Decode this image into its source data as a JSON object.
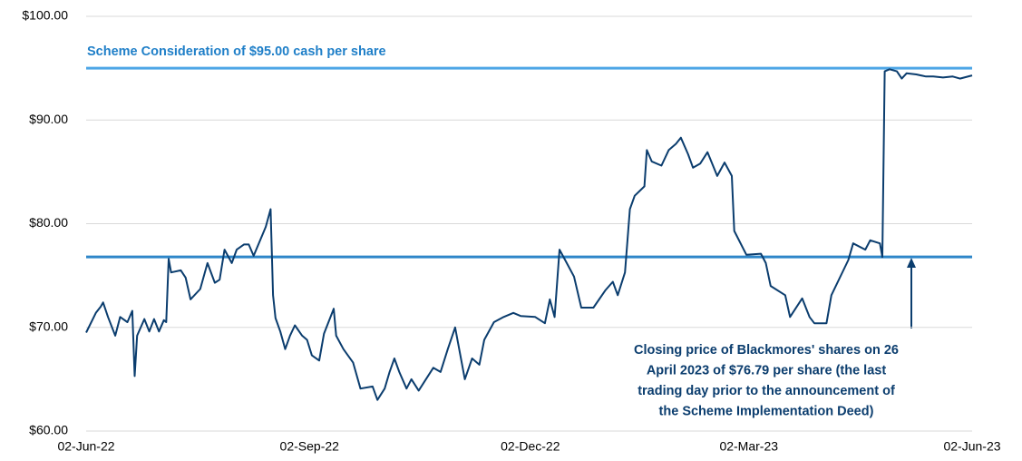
{
  "chart_data": {
    "type": "line",
    "x": [
      "2022-06-02",
      "2022-06-06",
      "2022-06-08",
      "2022-06-09",
      "2022-06-11",
      "2022-06-14",
      "2022-06-16",
      "2022-06-19",
      "2022-06-21",
      "2022-06-22",
      "2022-06-23",
      "2022-06-26",
      "2022-06-28",
      "2022-06-30",
      "2022-07-02",
      "2022-07-04",
      "2022-07-05",
      "2022-07-06",
      "2022-07-07",
      "2022-07-11",
      "2022-07-13",
      "2022-07-15",
      "2022-07-19",
      "2022-07-22",
      "2022-07-25",
      "2022-07-27",
      "2022-07-29",
      "2022-08-01",
      "2022-08-03",
      "2022-08-06",
      "2022-08-08",
      "2022-08-10",
      "2022-08-15",
      "2022-08-17",
      "2022-08-18",
      "2022-08-19",
      "2022-08-21",
      "2022-08-23",
      "2022-08-25",
      "2022-08-27",
      "2022-08-30",
      "2022-09-01",
      "2022-09-03",
      "2022-09-06",
      "2022-09-08",
      "2022-09-12",
      "2022-09-13",
      "2022-09-16",
      "2022-09-20",
      "2022-09-23",
      "2022-09-28",
      "2022-09-30",
      "2022-10-03",
      "2022-10-05",
      "2022-10-07",
      "2022-10-09",
      "2022-10-12",
      "2022-10-14",
      "2022-10-17",
      "2022-10-20",
      "2022-10-23",
      "2022-10-26",
      "2022-10-29",
      "2022-11-01",
      "2022-11-05",
      "2022-11-08",
      "2022-11-11",
      "2022-11-13",
      "2022-11-17",
      "2022-11-21",
      "2022-11-25",
      "2022-11-28",
      "2022-12-04",
      "2022-12-08",
      "2022-12-10",
      "2022-12-12",
      "2022-12-14",
      "2022-12-17",
      "2022-12-20",
      "2022-12-23",
      "2022-12-28",
      "2023-01-02",
      "2023-01-05",
      "2023-01-07",
      "2023-01-10",
      "2023-01-12",
      "2023-01-14",
      "2023-01-18",
      "2023-01-19",
      "2023-01-21",
      "2023-01-25",
      "2023-01-28",
      "2023-01-31",
      "2023-02-02",
      "2023-02-05",
      "2023-02-07",
      "2023-02-10",
      "2023-02-13",
      "2023-02-17",
      "2023-02-20",
      "2023-02-23",
      "2023-02-24",
      "2023-03-01",
      "2023-03-07",
      "2023-03-09",
      "2023-03-11",
      "2023-03-17",
      "2023-03-19",
      "2023-03-24",
      "2023-03-27",
      "2023-03-29",
      "2023-04-03",
      "2023-04-05",
      "2023-04-12",
      "2023-04-14",
      "2023-04-19",
      "2023-04-21",
      "2023-04-25",
      "2023-04-26",
      "2023-04-27",
      "2023-04-29",
      "2023-05-02",
      "2023-05-04",
      "2023-05-06",
      "2023-05-10",
      "2023-05-14",
      "2023-05-17",
      "2023-05-21",
      "2023-05-25",
      "2023-05-28",
      "2023-06-02"
    ],
    "series": [
      {
        "color": "#0b3d6e",
        "values": [
          69.5,
          71.4,
          72.0,
          72.4,
          71.0,
          69.2,
          71.0,
          70.5,
          71.6,
          65.3,
          69.2,
          70.8,
          69.6,
          70.8,
          69.6,
          70.7,
          70.5,
          76.6,
          75.3,
          75.5,
          74.8,
          72.7,
          73.7,
          76.2,
          74.3,
          74.6,
          77.5,
          76.2,
          77.5,
          78.0,
          78.0,
          76.9,
          79.7,
          81.4,
          73.1,
          70.9,
          69.6,
          67.9,
          69.2,
          70.2,
          69.2,
          68.8,
          67.3,
          66.8,
          69.4,
          71.8,
          69.2,
          67.9,
          66.6,
          64.1,
          64.3,
          63.0,
          64.1,
          65.7,
          67.0,
          65.7,
          64.1,
          65.0,
          63.9,
          65.0,
          66.1,
          65.7,
          67.9,
          70.0,
          65.0,
          67.0,
          66.4,
          68.8,
          70.5,
          71.0,
          71.4,
          71.1,
          71.0,
          70.4,
          72.7,
          71.0,
          77.5,
          76.2,
          74.9,
          71.9,
          71.9,
          73.6,
          74.4,
          73.1,
          75.3,
          81.4,
          82.7,
          83.6,
          87.1,
          86.0,
          85.6,
          87.1,
          87.7,
          88.3,
          86.7,
          85.4,
          85.8,
          86.9,
          84.6,
          85.9,
          84.6,
          79.3,
          77.0,
          77.1,
          76.2,
          74.0,
          73.1,
          71.0,
          72.8,
          71.0,
          70.4,
          70.4,
          73.1,
          76.5,
          78.1,
          77.5,
          78.4,
          78.1,
          76.79,
          94.7,
          94.9,
          94.7,
          94.0,
          94.5,
          94.4,
          94.2,
          94.2,
          94.1,
          94.2,
          94.0,
          94.3
        ]
      }
    ],
    "xlim": [
      "2022-06-02",
      "2023-06-02"
    ],
    "xticks": [
      {
        "value": "2022-06-02",
        "label": "02-Jun-22"
      },
      {
        "value": "2022-09-02",
        "label": "02-Sep-22"
      },
      {
        "value": "2022-12-02",
        "label": "02-Dec-22"
      },
      {
        "value": "2023-03-02",
        "label": "02-Mar-23"
      },
      {
        "value": "2023-06-02",
        "label": "02-Jun-23"
      }
    ],
    "ylim": [
      60,
      100
    ],
    "yticks": [
      {
        "value": 60,
        "label": "$60.00"
      },
      {
        "value": 70,
        "label": "$70.00"
      },
      {
        "value": 80,
        "label": "$80.00"
      },
      {
        "value": 90,
        "label": "$90.00"
      },
      {
        "value": 100,
        "label": "$100.00"
      }
    ],
    "grid": true,
    "reference_lines": [
      {
        "value": 95,
        "color": "#4ea6e6",
        "label": [
          "Scheme Consideration of $95.00 cash per share"
        ]
      },
      {
        "value": 76.79,
        "color": "#2e86c9",
        "label": [
          "Closing price of Blackmores' shares on 26",
          "April 2023 of $76.79 per share (the last",
          "trading day prior to the announcement of",
          "the Scheme Implementation Deed)"
        ]
      }
    ]
  }
}
